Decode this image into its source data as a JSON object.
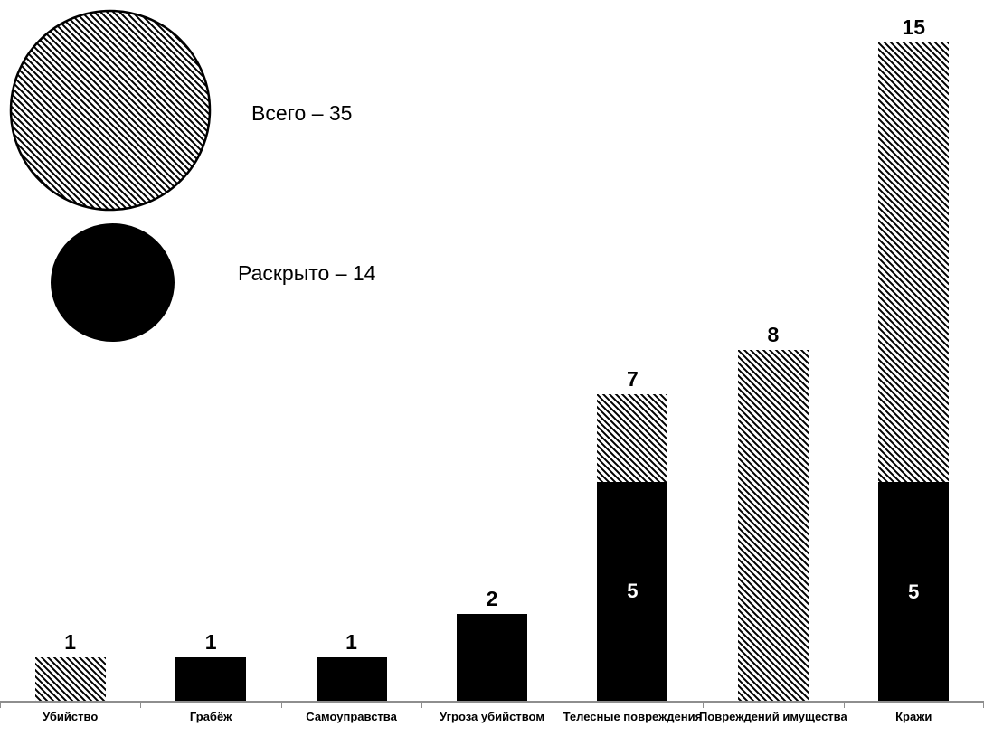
{
  "legend": {
    "total_label": "Всего – 35",
    "solved_label": "Раскрыто – 14"
  },
  "chart_data": {
    "type": "bar",
    "stacked": true,
    "title": "",
    "xlabel": "",
    "ylabel": "",
    "grid": false,
    "ylim": [
      0,
      16
    ],
    "categories": [
      "Убийство",
      "Грабёж",
      "Самоуправства",
      "Угроза убийством",
      "Телесные повреждения",
      "Повреждений имущества",
      "Кражи"
    ],
    "series": [
      {
        "id": "solved",
        "pattern": "solid-black",
        "values": [
          0,
          1,
          1,
          2,
          5,
          0,
          5
        ]
      },
      {
        "id": "remainder",
        "pattern": "diagonal-hatch",
        "values": [
          1,
          0,
          0,
          0,
          2,
          8,
          10
        ]
      }
    ],
    "totals": [
      1,
      1,
      1,
      2,
      7,
      8,
      15
    ],
    "bar_total_labels": [
      "1",
      "1",
      "1",
      "2",
      "7",
      "8",
      "15"
    ],
    "inner_segment_labels": [
      "",
      "",
      "",
      "",
      "5",
      "",
      "5"
    ],
    "legend_entries": [
      {
        "label": "Всего – 35",
        "symbol": "hatched-circle",
        "value": 35
      },
      {
        "label": "Раскрыто – 14",
        "symbol": "black-circle",
        "value": 14
      }
    ]
  },
  "colors": {
    "bar_fill": "#000000",
    "hatch_line": "#000000",
    "background": "#ffffff",
    "axis": "#8e8e8e",
    "inner_label_text": "#ffffff"
  }
}
